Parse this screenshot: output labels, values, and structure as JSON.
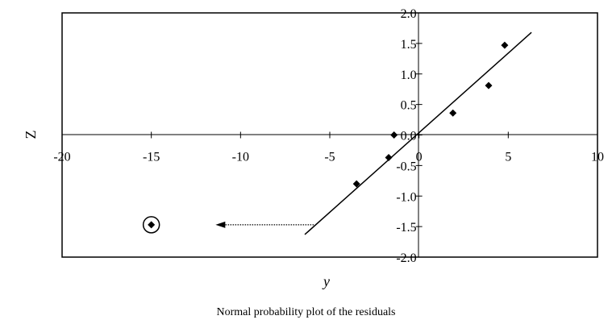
{
  "chart_data": {
    "type": "scatter",
    "title": "",
    "xlabel": "y",
    "ylabel": "Z",
    "xlim": [
      -20,
      10
    ],
    "ylim": [
      -2.0,
      2.0
    ],
    "x_ticks": [
      -20,
      -15,
      -10,
      -5,
      0,
      5,
      10
    ],
    "x_tick_labels": [
      "-20",
      "-15",
      "-10",
      "-5",
      "0",
      "5",
      "10"
    ],
    "y_ticks": [
      2.0,
      1.5,
      1.0,
      0.5,
      0.0,
      -0.5,
      -1.0,
      -1.5,
      -2.0
    ],
    "y_tick_labels": [
      "2.0",
      "1.5",
      "1.0",
      "0.5",
      "0.0",
      "-0.5",
      "-1.0",
      "-1.5",
      "-2.0"
    ],
    "grid": false,
    "series": [
      {
        "marker": "diamond",
        "color": "#000000",
        "points": [
          {
            "x": -15.0,
            "y": -1.47
          },
          {
            "x": -3.5,
            "y": -0.8
          },
          {
            "x": -1.7,
            "y": -0.37
          },
          {
            "x": -1.4,
            "y": 0.0
          },
          {
            "x": 1.9,
            "y": 0.36
          },
          {
            "x": 3.9,
            "y": 0.81
          },
          {
            "x": 4.8,
            "y": 1.47
          }
        ]
      }
    ],
    "fit_line": {
      "x": [
        -6.4,
        6.3
      ],
      "y": [
        -1.63,
        1.68
      ]
    },
    "highlighted_point": {
      "x": -15.0,
      "y": -1.47,
      "style": "circled outlier"
    },
    "arrow": {
      "from": {
        "x": -5.9,
        "y": -1.47
      },
      "to": {
        "x": -11.4,
        "y": -1.47
      },
      "style": "dotted"
    }
  },
  "caption": "Normal probability plot of the residuals"
}
